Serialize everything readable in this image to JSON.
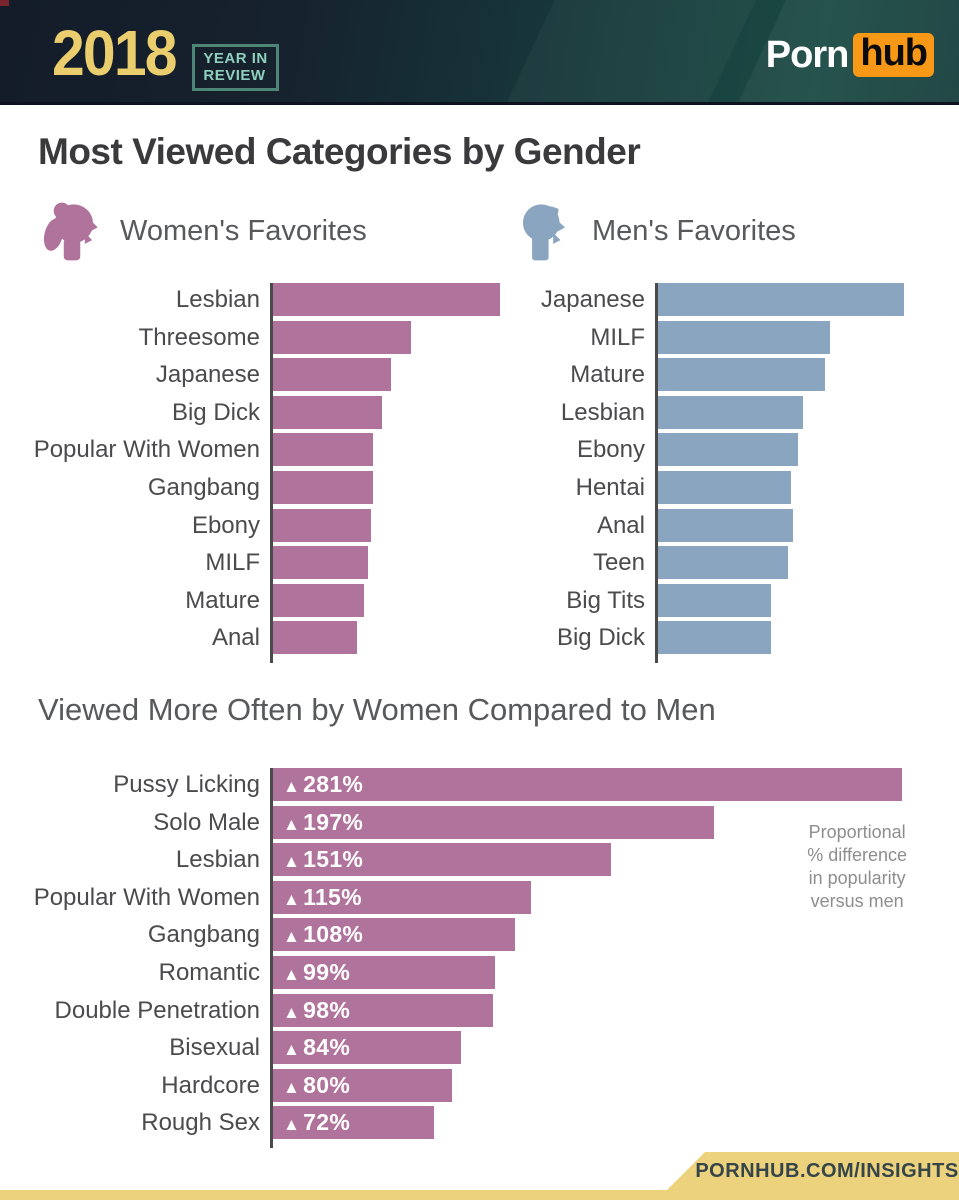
{
  "header": {
    "year": "2018",
    "year_in_review_line1": "YEAR IN",
    "year_in_review_line2": "REVIEW",
    "brand_porn": "Porn",
    "brand_hub": "hub",
    "colors": {
      "year_gold": "#eace6e",
      "review_teal": "#8fd0bd",
      "hub_orange": "#f79817",
      "bg_left": "#131c28",
      "bg_right": "#1b4a44"
    }
  },
  "main": {
    "title": "Most Viewed Categories by Gender",
    "women_section_label": "Women's Favorites",
    "men_section_label": "Men's Favorites",
    "comparison_title": "Viewed More Often by Women Compared to Men",
    "annotation": [
      "Proportional",
      "% difference",
      "in popularity",
      "versus men"
    ]
  },
  "footer": {
    "insights_label": "PORNHUB.COM/INSIGHTS",
    "bar_color": "#ecd27c"
  },
  "chart_data": [
    {
      "type": "bar",
      "orientation": "horizontal",
      "title": "Women's Favorites",
      "categories": [
        "Lesbian",
        "Threesome",
        "Japanese",
        "Big Dick",
        "Popular With Women",
        "Gangbang",
        "Ebony",
        "MILF",
        "Mature",
        "Anal"
      ],
      "values": [
        100,
        61,
        52,
        48,
        44,
        44,
        43,
        42,
        40,
        37
      ],
      "unit": "relative popularity (top category = 100)",
      "bar_color": "#b0749c",
      "axis_color": "#4a4a4a",
      "grid": false,
      "legend": false
    },
    {
      "type": "bar",
      "orientation": "horizontal",
      "title": "Men's Favorites",
      "categories": [
        "Japanese",
        "MILF",
        "Mature",
        "Lesbian",
        "Ebony",
        "Hentai",
        "Anal",
        "Teen",
        "Big Tits",
        "Big Dick"
      ],
      "values": [
        100,
        70,
        68,
        59,
        57,
        54,
        55,
        53,
        46,
        46
      ],
      "unit": "relative popularity (top category = 100)",
      "bar_color": "#8aa5bf",
      "axis_color": "#4a4a4a",
      "grid": false,
      "legend": false
    },
    {
      "type": "bar",
      "orientation": "horizontal",
      "title": "Viewed More Often by Women Compared to Men",
      "categories": [
        "Pussy Licking",
        "Solo Male",
        "Lesbian",
        "Popular With Women",
        "Gangbang",
        "Romantic",
        "Double Penetration",
        "Bisexual",
        "Hardcore",
        "Rough Sex"
      ],
      "values": [
        281,
        197,
        151,
        115,
        108,
        99,
        98,
        84,
        80,
        72
      ],
      "bar_labels": [
        "▲281%",
        "▲197%",
        "▲151%",
        "▲115%",
        "▲108%",
        "▲99%",
        "▲98%",
        "▲84%",
        "▲80%",
        "▲72%"
      ],
      "unit": "proportional % difference in popularity versus men",
      "bar_color": "#b0749c",
      "axis_color": "#4a4a4a",
      "grid": false,
      "legend": false
    }
  ]
}
